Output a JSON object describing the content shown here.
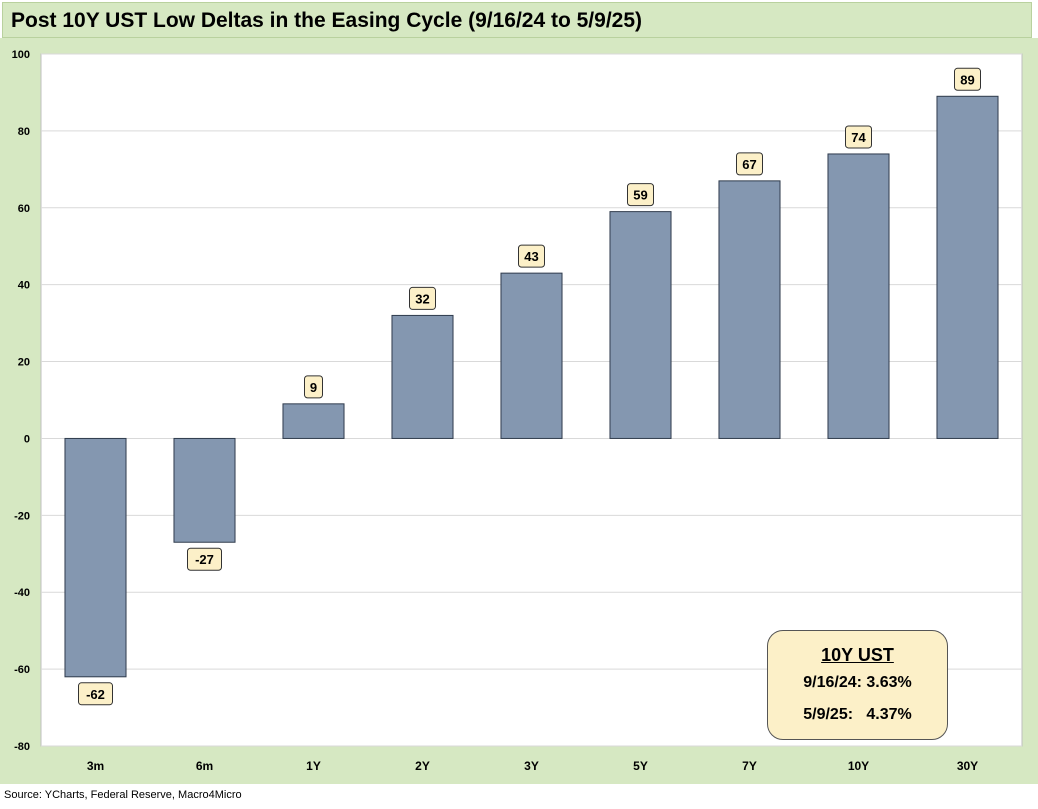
{
  "title": "Post 10Y UST Low Deltas in the Easing Cycle (9/16/24 to 5/9/25)",
  "source": "Source: YCharts, Federal Reserve, Macro4Micro",
  "info_box": {
    "title": "10Y UST",
    "row1": "9/16/24: 3.63%",
    "row2": "5/9/25:   4.37%"
  },
  "colors": {
    "bar": "#8497b0",
    "frame": "#d6e8c2",
    "label_bg": "#fcf0c8"
  },
  "chart_data": {
    "type": "bar",
    "title": "Post 10Y UST Low Deltas in the Easing Cycle (9/16/24 to 5/9/25)",
    "categories": [
      "3m",
      "6m",
      "1Y",
      "2Y",
      "3Y",
      "5Y",
      "7Y",
      "10Y",
      "30Y"
    ],
    "values": [
      -62,
      -27,
      9,
      32,
      43,
      59,
      67,
      74,
      89
    ],
    "ylim": [
      -80,
      100
    ],
    "yticks": [
      "-80",
      "-60",
      "-40",
      "-20",
      "0",
      "20",
      "40",
      "60",
      "80",
      "100"
    ],
    "grid": true,
    "legend": "none"
  }
}
